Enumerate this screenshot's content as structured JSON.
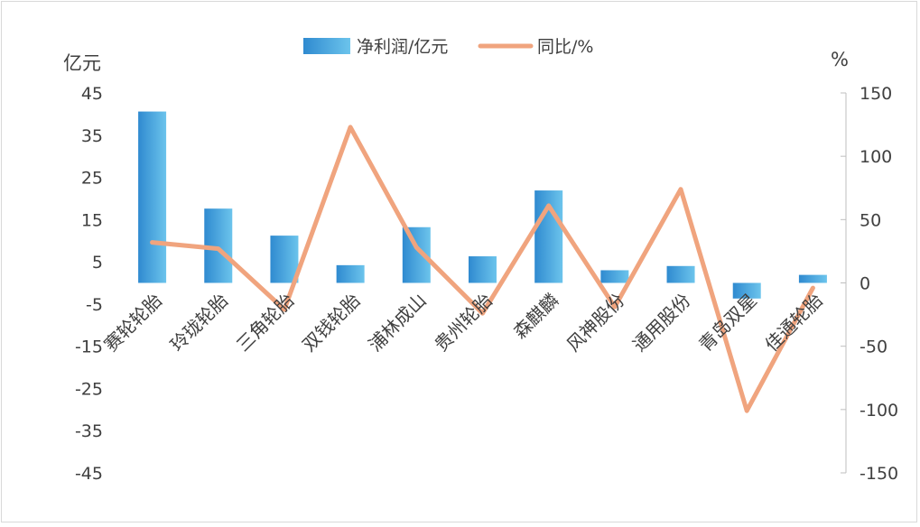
{
  "chart_data": {
    "type": "bar",
    "categories": [
      "赛轮轮胎",
      "玲珑轮胎",
      "三角轮胎",
      "双钱轮胎",
      "浦林成山",
      "贵州轮胎",
      "森麒麟",
      "风神股份",
      "通用股份",
      "青岛双星",
      "佳通轮胎"
    ],
    "series": [
      {
        "name": "净利润/亿元",
        "type": "bar",
        "axis": "left",
        "color": "#3a9ad9",
        "values": [
          40.6,
          17.6,
          11.2,
          4.2,
          13.2,
          6.3,
          21.9,
          3.0,
          4.0,
          -3.7,
          1.9
        ]
      },
      {
        "name": "同比/%",
        "type": "line",
        "axis": "right",
        "color": "#f0a47e",
        "values": [
          32,
          27,
          -21,
          123,
          28,
          -24,
          61,
          -19,
          74,
          -101,
          -4
        ]
      }
    ],
    "y_left": {
      "unit": "亿元",
      "min": -45,
      "max": 45,
      "ticks": [
        45,
        35,
        25,
        15,
        5,
        -5,
        -15,
        -25,
        -35,
        -45
      ]
    },
    "y_right": {
      "unit": "%",
      "min": -150,
      "max": 150,
      "ticks": [
        150,
        100,
        50,
        0,
        -50,
        -100,
        -150
      ]
    },
    "legend": "top-center",
    "grid": false
  }
}
